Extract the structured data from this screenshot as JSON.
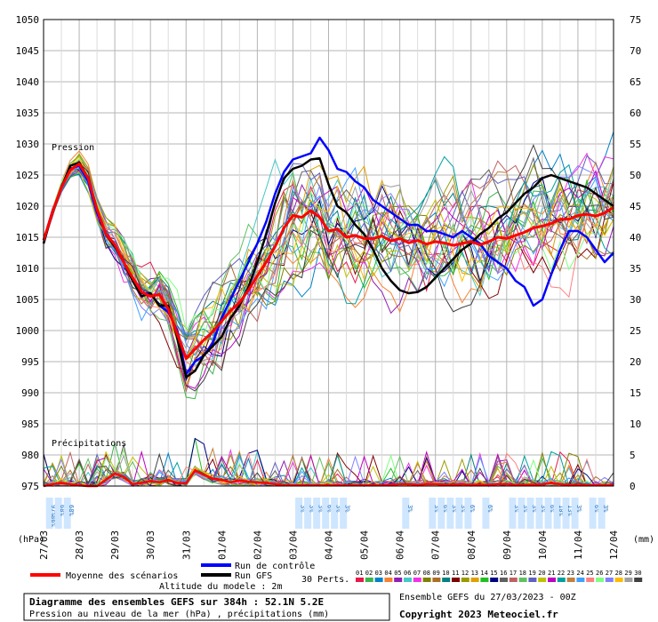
{
  "chart_data": {
    "type": "line",
    "title": "Diagramme des ensembles GEFS sur 384h : 52.1N 5.2E",
    "subtitle": "Pression au niveau de la mer (hPa) , précipitations (mm)",
    "run_label": "Ensemble GEFS du 27/03/2023 - 00Z",
    "copyright": "Copyright 2023 Meteociel.fr",
    "altitude_label": "Altitude du modele : 2m",
    "left_unit": "(hPa)",
    "right_unit": "(mm)",
    "section_pressure": "Pression",
    "section_precip": "Précipitations",
    "left_axis": {
      "min": 975,
      "max": 1050,
      "step": 5
    },
    "right_axis": {
      "min": 0,
      "max": 75,
      "step": 5
    },
    "x_range": [
      0,
      384
    ],
    "x_ticks": [
      {
        "h": 0,
        "label": "27/03"
      },
      {
        "h": 24,
        "label": "28/03"
      },
      {
        "h": 48,
        "label": "29/03"
      },
      {
        "h": 72,
        "label": "30/03"
      },
      {
        "h": 96,
        "label": "31/03"
      },
      {
        "h": 120,
        "label": "01/04"
      },
      {
        "h": 144,
        "label": "02/04"
      },
      {
        "h": 168,
        "label": "03/04"
      },
      {
        "h": 192,
        "label": "04/04"
      },
      {
        "h": 216,
        "label": "05/04"
      },
      {
        "h": 240,
        "label": "06/04"
      },
      {
        "h": 264,
        "label": "07/04"
      },
      {
        "h": 288,
        "label": "08/04"
      },
      {
        "h": 312,
        "label": "09/04"
      },
      {
        "h": 336,
        "label": "10/04"
      },
      {
        "h": 360,
        "label": "11/04"
      },
      {
        "h": 384,
        "label": "12/04"
      }
    ],
    "legend": {
      "mean": {
        "label": "Moyenne des scénarios",
        "color": "#ff0000"
      },
      "control": {
        "label": "Run de contrôle",
        "color": "#0000ff"
      },
      "gfs": {
        "label": "Run GFS",
        "color": "#000000"
      },
      "perts_label": "30 Perts."
    },
    "perturbation_colors": [
      "#e6194b",
      "#3cb44b",
      "#0082c8",
      "#f58231",
      "#911eb4",
      "#46c8c8",
      "#f032e6",
      "#808000",
      "#aa6e28",
      "#008080",
      "#800000",
      "#9a9a00",
      "#e0a000",
      "#20c020",
      "#000080",
      "#606060",
      "#c06060",
      "#60c060",
      "#6060c0",
      "#c0c000",
      "#c000c0",
      "#00a0a0",
      "#c08040",
      "#40a0ff",
      "#ff8080",
      "#80ff80",
      "#8080ff",
      "#ffbb00",
      "#a0a0a0",
      "#404040"
    ],
    "perturbation_ids": [
      "01",
      "02",
      "03",
      "04",
      "05",
      "06",
      "07",
      "08",
      "09",
      "10",
      "11",
      "12",
      "13",
      "14",
      "15",
      "16",
      "17",
      "18",
      "19",
      "20",
      "21",
      "22",
      "23",
      "24",
      "25",
      "26",
      "27",
      "28",
      "29",
      "30"
    ],
    "series": [
      {
        "name": "Moyenne des scénarios",
        "x": [
          0,
          6,
          12,
          18,
          24,
          30,
          36,
          42,
          48,
          54,
          60,
          66,
          72,
          78,
          84,
          90,
          96,
          102,
          108,
          114,
          120,
          126,
          132,
          138,
          144,
          150,
          156,
          162,
          168,
          174,
          180,
          186,
          192,
          198,
          204,
          210,
          216,
          222,
          228,
          234,
          240,
          246,
          252,
          258,
          264,
          270,
          276,
          282,
          288,
          294,
          300,
          306,
          312,
          318,
          324,
          330,
          336,
          342,
          348,
          354,
          360,
          366,
          372,
          378,
          384
        ],
        "y": [
          1014.5,
          1019,
          1023,
          1025.8,
          1026.8,
          1024.5,
          1019.5,
          1015.5,
          1013.8,
          1011,
          1008.5,
          1006.2,
          1005.5,
          1005.8,
          1003.5,
          999.5,
          995.5,
          997,
          998.5,
          999.8,
          1001.5,
          1003.2,
          1004.5,
          1006.5,
          1008.8,
          1011,
          1013.5,
          1016.5,
          1018.5,
          1018.2,
          1019.3,
          1018.2,
          1016,
          1016.3,
          1015,
          1015.3,
          1014.8,
          1014.8,
          1015.2,
          1014.4,
          1014.8,
          1014.1,
          1014.5,
          1013.9,
          1014.3,
          1014.1,
          1013.7,
          1014.0,
          1014.3,
          1013.8,
          1014.3,
          1015.0,
          1014.8,
          1015.3,
          1015.8,
          1016.5,
          1016.8,
          1017.2,
          1017.9,
          1017.9,
          1018.5,
          1018.7,
          1018.4,
          1018.9,
          1019.8
        ]
      },
      {
        "name": "Run de contrôle",
        "x": [
          0,
          6,
          12,
          18,
          24,
          30,
          36,
          42,
          48,
          54,
          60,
          66,
          72,
          78,
          84,
          90,
          96,
          102,
          108,
          114,
          120,
          126,
          132,
          138,
          144,
          150,
          156,
          162,
          168,
          174,
          180,
          186,
          192,
          198,
          204,
          210,
          216,
          222,
          228,
          234,
          240,
          246,
          252,
          258,
          264,
          270,
          276,
          282,
          288,
          294,
          300,
          306,
          312,
          318,
          324,
          330,
          336,
          342,
          348,
          354,
          360,
          366,
          372,
          378,
          384
        ],
        "y": [
          1014,
          1019,
          1023,
          1026,
          1026.5,
          1024,
          1019,
          1015.5,
          1013.5,
          1011,
          1008,
          1006,
          1006,
          1004,
          1003,
          1000,
          993,
          995,
          996,
          998,
          1002,
          1005,
          1008,
          1011,
          1014,
          1017.5,
          1022,
          1025.5,
          1027.5,
          1028,
          1028.5,
          1031,
          1029,
          1026,
          1025.5,
          1024,
          1023,
          1021,
          1020,
          1019,
          1018,
          1017,
          1017,
          1016,
          1016,
          1015.5,
          1015,
          1016,
          1015,
          1014,
          1012,
          1011,
          1010,
          1008,
          1007,
          1004,
          1005,
          1009,
          1013,
          1016,
          1016,
          1015,
          1013,
          1011,
          1012.5
        ]
      },
      {
        "name": "Run GFS",
        "x": [
          0,
          6,
          12,
          18,
          24,
          30,
          36,
          42,
          48,
          54,
          60,
          66,
          72,
          78,
          84,
          90,
          96,
          102,
          108,
          114,
          120,
          126,
          132,
          138,
          144,
          150,
          156,
          162,
          168,
          174,
          180,
          186,
          192,
          198,
          204,
          210,
          216,
          222,
          228,
          234,
          240,
          246,
          252,
          258,
          264,
          270,
          276,
          282,
          288,
          294,
          300,
          306,
          312,
          318,
          324,
          330,
          336,
          342,
          348,
          354,
          360,
          366,
          372,
          378,
          384
        ],
        "y": [
          1014,
          1019,
          1023,
          1026.5,
          1027,
          1024.5,
          1019.5,
          1015.5,
          1013.5,
          1011,
          1008,
          1005.5,
          1006,
          1004,
          1004,
          999,
          992.5,
          993.5,
          996,
          997.5,
          999,
          1002,
          1004,
          1007,
          1011,
          1015.5,
          1020.5,
          1024.5,
          1026,
          1026.5,
          1027.5,
          1027.7,
          1023.5,
          1020,
          1019,
          1017,
          1015.5,
          1013,
          1010,
          1008,
          1006.5,
          1006,
          1006.2,
          1007,
          1008.5,
          1010,
          1011.5,
          1013,
          1014,
          1015.5,
          1016.5,
          1018,
          1019,
          1020.5,
          1022,
          1023,
          1024.5,
          1025,
          1024.5,
          1024,
          1023.5,
          1023,
          1022,
          1021,
          1020
        ]
      }
    ],
    "precip_mean": [
      0,
      0.3,
      0.5,
      0.3,
      0.1,
      0,
      0,
      1,
      2,
      1.5,
      0.3,
      0.5,
      0.8,
      0.6,
      1,
      0.5,
      0.4,
      2.5,
      1.8,
      1.2,
      1,
      0.6,
      0.9,
      0.7,
      0.6,
      0.5,
      0.3,
      0.1,
      0.1,
      0.1,
      0.1,
      0.1,
      0.1,
      0.1,
      0.1,
      0.1,
      0.1,
      0.1,
      0.1,
      0.2,
      0.3,
      0.3,
      0.2,
      0.3,
      0.3,
      0.2,
      0.2,
      0.3,
      0.2,
      0.2,
      0.2,
      0.3,
      0.3,
      0.2,
      0.2,
      0.2,
      0.3,
      0.5,
      0.3,
      0.2,
      0.2,
      0.2,
      0.1,
      0.1,
      0.1
    ],
    "snow_labels": [
      {
        "h": 4,
        "labels": [
          "97%",
          "86%"
        ]
      },
      {
        "h": 10,
        "labels": [
          "68%"
        ]
      },
      {
        "h": 16,
        "labels": [
          "68%"
        ]
      },
      {
        "h": 172,
        "labels": [
          "3%"
        ]
      },
      {
        "h": 178,
        "labels": [
          "3%"
        ]
      },
      {
        "h": 184,
        "labels": [
          "3%"
        ]
      },
      {
        "h": 190,
        "labels": [
          "6%"
        ]
      },
      {
        "h": 196,
        "labels": [
          "3%"
        ]
      },
      {
        "h": 202,
        "labels": [
          "3%"
        ]
      },
      {
        "h": 244,
        "labels": [
          "3%"
        ]
      },
      {
        "h": 262,
        "labels": [
          "3%"
        ]
      },
      {
        "h": 268,
        "labels": [
          "6%"
        ]
      },
      {
        "h": 274,
        "labels": [
          "3%"
        ]
      },
      {
        "h": 280,
        "labels": [
          "3%"
        ]
      },
      {
        "h": 286,
        "labels": [
          "6%"
        ]
      },
      {
        "h": 298,
        "labels": [
          "6%"
        ]
      },
      {
        "h": 316,
        "labels": [
          "3%"
        ]
      },
      {
        "h": 322,
        "labels": [
          "3%"
        ]
      },
      {
        "h": 328,
        "labels": [
          "3%"
        ]
      },
      {
        "h": 334,
        "labels": [
          "3%"
        ]
      },
      {
        "h": 340,
        "labels": [
          "6%"
        ]
      },
      {
        "h": 346,
        "labels": [
          "10%"
        ]
      },
      {
        "h": 352,
        "labels": [
          "13%"
        ]
      },
      {
        "h": 358,
        "labels": [
          "3%"
        ]
      },
      {
        "h": 370,
        "labels": [
          "6%"
        ]
      },
      {
        "h": 376,
        "labels": [
          "3%"
        ]
      }
    ]
  }
}
